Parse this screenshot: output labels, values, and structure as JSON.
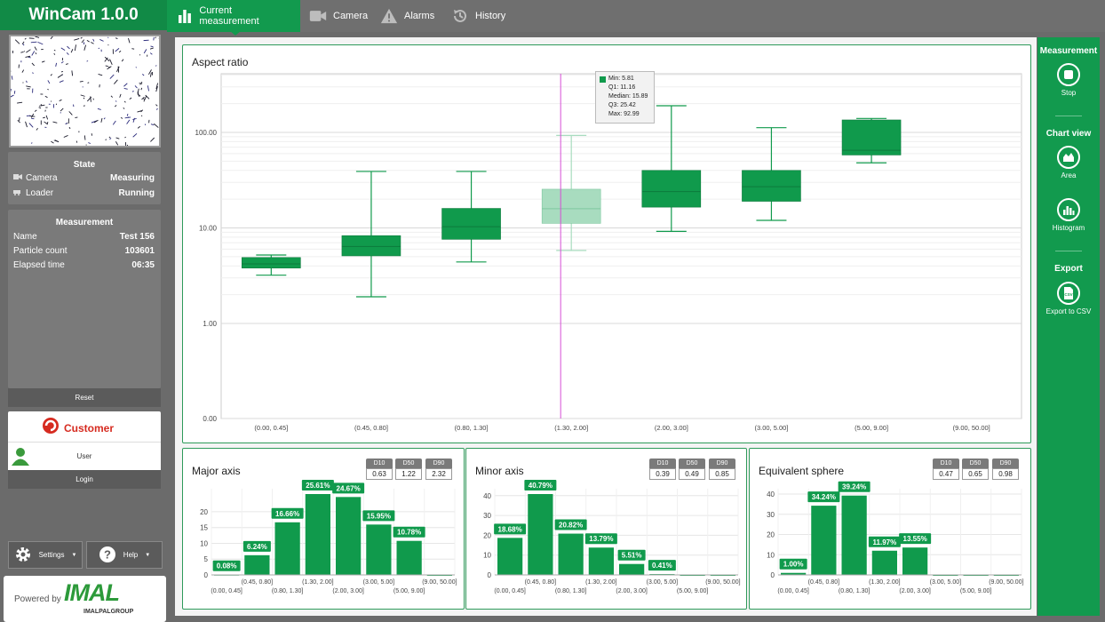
{
  "app": {
    "title": "WinCam 1.0.0"
  },
  "tabs": [
    {
      "label": "Current measurement",
      "icon": "bar-chart-icon",
      "active": true
    },
    {
      "label": "Camera",
      "icon": "video-camera-icon",
      "active": false
    },
    {
      "label": "Alarms",
      "icon": "warning-icon",
      "active": false
    },
    {
      "label": "History",
      "icon": "history-icon",
      "active": false
    }
  ],
  "state": {
    "title": "State",
    "rows": [
      {
        "label": "Camera",
        "value": "Measuring",
        "icon": "video-camera-icon"
      },
      {
        "label": "Loader",
        "value": "Running",
        "icon": "loader-icon"
      }
    ]
  },
  "measurement": {
    "title": "Measurement",
    "rows": [
      {
        "label": "Name",
        "value": "Test 156"
      },
      {
        "label": "Particle count",
        "value": "103601"
      },
      {
        "label": "Elapsed time",
        "value": "06:35"
      }
    ]
  },
  "reset": {
    "label": "Reset"
  },
  "customer": {
    "title": "Customer",
    "user": "User",
    "login": "Login"
  },
  "settings": {
    "label": "Settings"
  },
  "help": {
    "label": "Help"
  },
  "powered": {
    "label": "Powered by",
    "logo": "IMAL",
    "group": "IMALPALGROUP"
  },
  "right_panel": {
    "measurement_head": "Measurement",
    "stop": "Stop",
    "chart_view_head": "Chart view",
    "area": "Area",
    "histogram": "Histogram",
    "export_head": "Export",
    "export_csv": "Export to CSV",
    "csv_icon_text": "CSV"
  },
  "aspect": {
    "title": "Aspect ratio",
    "tooltip": {
      "color": "#109a4c",
      "lines": [
        "Min: 5.81",
        "Q1: 11.16",
        "Median: 15.89",
        "Q3: 25.42",
        "Max: 92.99"
      ]
    }
  },
  "chart_data": [
    {
      "type": "box",
      "title": "Aspect ratio",
      "yscale": "log",
      "ytick_labels": [
        "0.00",
        "1.00",
        "10.00",
        "100.00"
      ],
      "categories": [
        "(0.00, 0.45]",
        "(0.45, 0.80]",
        "(0.80, 1.30]",
        "(1.30, 2.00]",
        "(2.00, 3.00]",
        "(3.00, 5.00]",
        "(5.00, 9.00]",
        "(9.00, 50.00]"
      ],
      "boxes": [
        {
          "min": 3.2,
          "q1": 3.8,
          "median": 4.2,
          "q3": 4.9,
          "max": 5.2
        },
        {
          "min": 1.9,
          "q1": 5.1,
          "median": 6.4,
          "q3": 8.3,
          "max": 39
        },
        {
          "min": 4.4,
          "q1": 7.6,
          "median": 10.3,
          "q3": 16,
          "max": 39
        },
        {
          "min": 5.81,
          "q1": 11.16,
          "median": 15.89,
          "q3": 25.42,
          "max": 92.99
        },
        {
          "min": 9.2,
          "q1": 16.5,
          "median": 24,
          "q3": 40,
          "max": 190
        },
        {
          "min": 12,
          "q1": 19,
          "median": 27,
          "q3": 40,
          "max": 112
        },
        {
          "min": 48,
          "q1": 58,
          "median": 65,
          "q3": 135,
          "max": 140
        },
        null
      ],
      "highlighted": 3,
      "colors": {
        "box": "#109a4c",
        "highlight": "#a8dcbf",
        "cursor": "#d64fd6"
      }
    },
    {
      "type": "bar",
      "title": "Major axis",
      "stats": [
        {
          "label": "D10",
          "value": "0.63"
        },
        {
          "label": "D50",
          "value": "1.22"
        },
        {
          "label": "D90",
          "value": "2.32"
        }
      ],
      "categories": [
        "(0.00, 0.45]",
        "(0.45, 0.80]",
        "(0.80, 1.30]",
        "(1.30, 2.00]",
        "(2.00, 3.00]",
        "(3.00, 5.00]",
        "(5.00, 9.00]",
        "(9.00, 50.00]"
      ],
      "values": [
        0.08,
        6.24,
        16.66,
        25.61,
        24.67,
        15.95,
        10.78,
        0
      ],
      "labels": [
        "0.08%",
        "6.24%",
        "16.66%",
        "25.61%",
        "24.67%",
        "15.95%",
        "10.78%",
        ""
      ],
      "yticks": [
        0,
        5,
        10,
        15,
        20
      ],
      "ymax": 25.61
    },
    {
      "type": "bar",
      "title": "Minor axis",
      "stats": [
        {
          "label": "D10",
          "value": "0.39"
        },
        {
          "label": "D50",
          "value": "0.49"
        },
        {
          "label": "D90",
          "value": "0.85"
        }
      ],
      "categories": [
        "(0.00, 0.45]",
        "(0.45, 0.80]",
        "(0.80, 1.30]",
        "(1.30, 2.00]",
        "(2.00, 3.00]",
        "(3.00, 5.00]",
        "(5.00, 9.00]",
        "(9.00, 50.00]"
      ],
      "values": [
        18.68,
        40.79,
        20.82,
        13.79,
        5.51,
        0.41,
        0,
        0
      ],
      "labels": [
        "18.68%",
        "40.79%",
        "20.82%",
        "13.79%",
        "5.51%",
        "0.41%",
        "",
        ""
      ],
      "yticks": [
        0,
        10,
        20,
        30,
        40
      ],
      "ymax": 40.79
    },
    {
      "type": "bar",
      "title": "Equivalent sphere",
      "stats": [
        {
          "label": "D10",
          "value": "0.47"
        },
        {
          "label": "D50",
          "value": "0.65"
        },
        {
          "label": "D90",
          "value": "0.98"
        }
      ],
      "categories": [
        "(0.00, 0.45]",
        "(0.45, 0.80]",
        "(0.80, 1.30]",
        "(1.30, 2.00]",
        "(2.00, 3.00]",
        "(3.00, 5.00]",
        "(5.00, 9.00]",
        "(9.00, 50.00]"
      ],
      "values": [
        1.0,
        34.24,
        39.24,
        11.97,
        13.55,
        0,
        0,
        0
      ],
      "labels": [
        "1.00%",
        "34.24%",
        "39.24%",
        "11.97%",
        "13.55%",
        "",
        "",
        ""
      ],
      "yticks": [
        0,
        10,
        20,
        30,
        40
      ],
      "ymax": 39.24
    }
  ]
}
